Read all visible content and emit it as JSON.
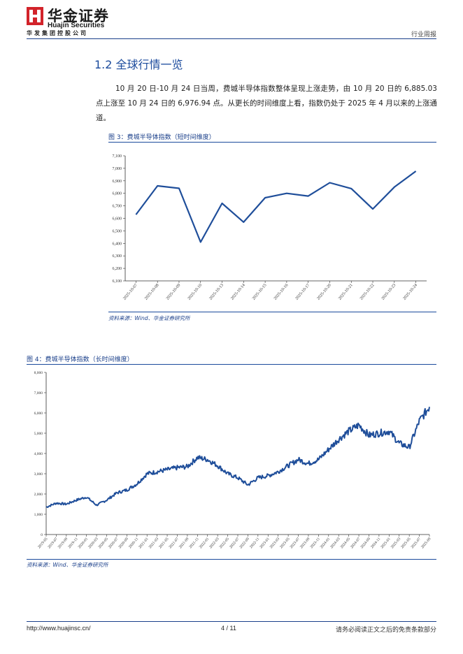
{
  "header": {
    "brand_cn": "华金证券",
    "brand_en": "Huajin Securities",
    "company": "华发集团控股公司",
    "report_type": "行业周报"
  },
  "section": {
    "title": "1.2 全球行情一览",
    "paragraph": "10 月 20 日-10 月 24 日当周，费城半导体指数整体呈现上涨走势，由 10 月 20 日的 6,885.03 点上涨至 10 月 24 日的 6,976.94 点。从更长的时间维度上看，指数仍处于 2025 年 4 月以来的上涨通道。"
  },
  "figure3": {
    "caption": "图 3：费城半导体指数（短时间维度）",
    "source": "资料来源：Wind、华金证券研究所"
  },
  "figure4": {
    "caption": "图 4：费城半导体指数（长时间维度）",
    "source": "资料来源：Wind、华金证券研究所"
  },
  "footer": {
    "url": "http://www.huajinsc.cn/",
    "page": "4 / 11",
    "disclaimer": "请务必阅读正文之后的免责条款部分"
  },
  "colors": {
    "accent": "#1a4a9c",
    "line": "#1f4e9a",
    "logo_red": "#d2232a"
  },
  "chart_data": [
    {
      "type": "line",
      "title": "费城半导体指数（短时间维度）",
      "categories": [
        "2025-10-07",
        "2025-10-08",
        "2025-10-09",
        "2025-10-10",
        "2025-10-13",
        "2025-10-14",
        "2025-10-15",
        "2025-10-16",
        "2025-10-17",
        "2025-10-20",
        "2025-10-21",
        "2025-10-22",
        "2025-10-23",
        "2025-10-24"
      ],
      "values": [
        6630,
        6860,
        6840,
        6410,
        6720,
        6570,
        6765,
        6800,
        6778,
        6885.03,
        6838,
        6675,
        6850,
        6976.94
      ],
      "ylim": [
        6100,
        7100
      ],
      "yticks": [
        "6,100",
        "6,200",
        "6,300",
        "6,400",
        "6,500",
        "6,600",
        "6,700",
        "6,800",
        "6,900",
        "7,000",
        "7,100"
      ],
      "grid": false
    },
    {
      "type": "line",
      "title": "费城半导体指数（长时间维度）",
      "categories": [
        "2019-05",
        "2019-07",
        "2019-09",
        "2019-11",
        "2020-01",
        "2020-03",
        "2020-05",
        "2020-07",
        "2020-09",
        "2020-11",
        "2021-01",
        "2021-03",
        "2021-05",
        "2021-07",
        "2021-09",
        "2021-11",
        "2022-01",
        "2022-03",
        "2022-05",
        "2022-07",
        "2022-09",
        "2022-11",
        "2023-01",
        "2023-03",
        "2023-05",
        "2023-07",
        "2023-09",
        "2023-11",
        "2024-01",
        "2024-03",
        "2024-05",
        "2024-07",
        "2024-09",
        "2024-11",
        "2025-01",
        "2025-03",
        "2025-05",
        "2025-07",
        "2025-09"
      ],
      "values": [
        1350,
        1550,
        1500,
        1700,
        1850,
        1450,
        1700,
        2050,
        2200,
        2500,
        3000,
        3100,
        3200,
        3300,
        3350,
        3800,
        3700,
        3400,
        3000,
        2800,
        2450,
        2800,
        2900,
        3100,
        3400,
        3700,
        3500,
        3700,
        4200,
        4700,
        5100,
        5400,
        4900,
        5000,
        5100,
        4500,
        4300,
        5600,
        6300
      ],
      "ylim": [
        0,
        8000
      ],
      "yticks": [
        "0",
        "1,000",
        "2,000",
        "3,000",
        "4,000",
        "5,000",
        "6,000",
        "7,000",
        "8,000"
      ],
      "grid": false
    }
  ]
}
